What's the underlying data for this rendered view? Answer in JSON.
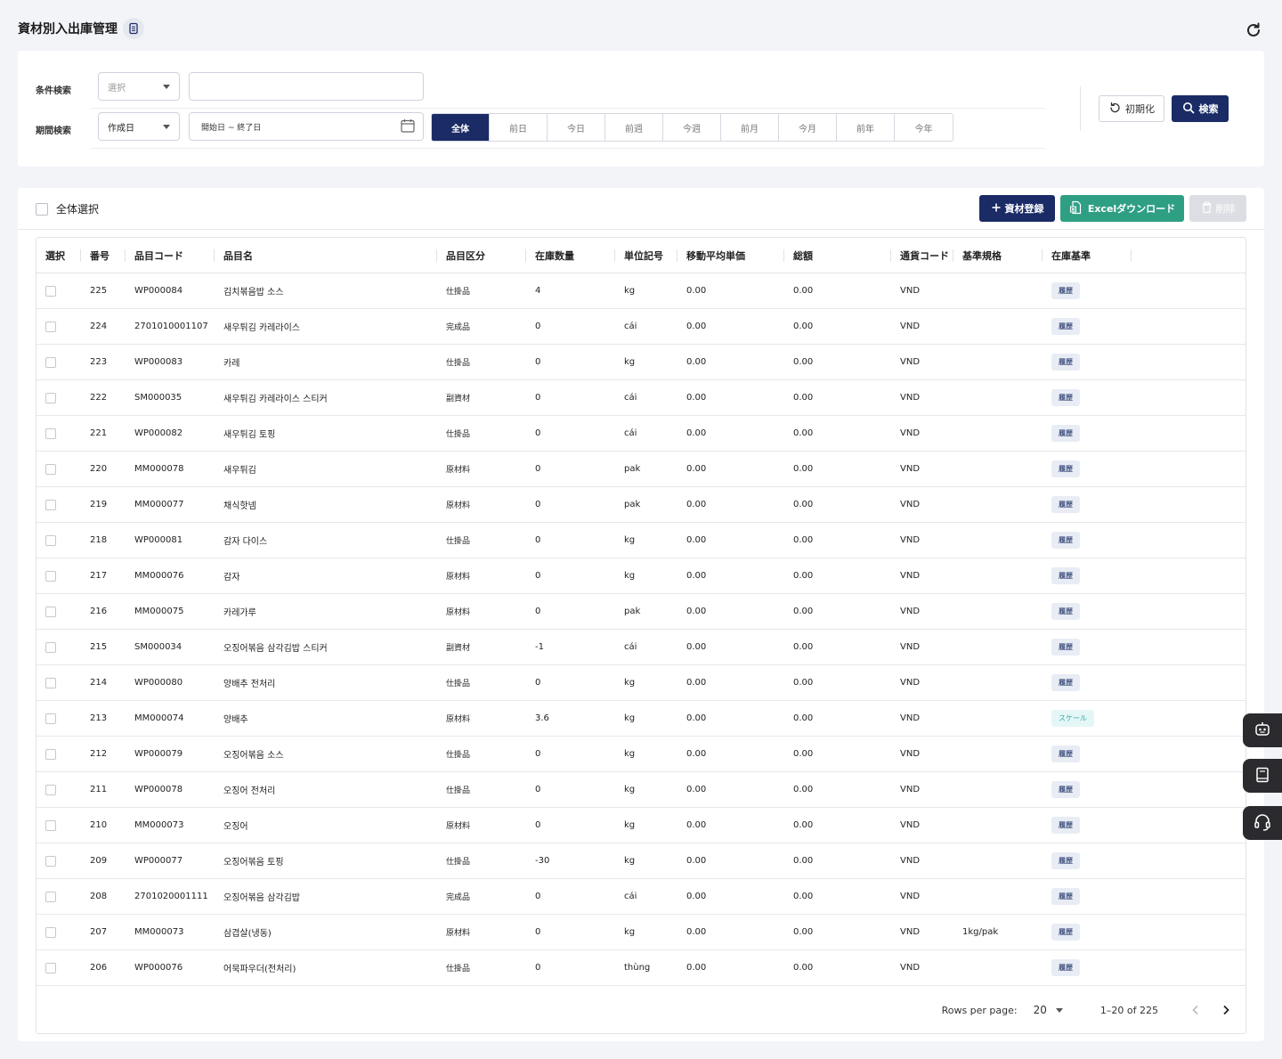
{
  "header": {
    "title": "資材別入出庫管理"
  },
  "filters": {
    "condition_label": "条件検索",
    "condition_select_placeholder": "選択",
    "condition_input_value": "",
    "period_label": "期間検索",
    "period_select_value": "作成日",
    "date_range_placeholder": "開始日 ~ 終了日",
    "period_buttons": [
      "全体",
      "前日",
      "今日",
      "前週",
      "今週",
      "前月",
      "今月",
      "前年",
      "今年"
    ],
    "reset_label": "初期化",
    "search_label": "検索"
  },
  "toolbar": {
    "select_all_label": "全体選択",
    "register_label": "資材登録",
    "excel_label": "Excelダウンロード",
    "delete_label": "削除"
  },
  "table": {
    "columns": [
      "選択",
      "番号",
      "品目コード",
      "品目名",
      "品目区分",
      "在庫数量",
      "単位記号",
      "移動平均単価",
      "総額",
      "通貨コード",
      "基準規格",
      "在庫基準"
    ],
    "rows": [
      {
        "no": "225",
        "code": "WP000084",
        "name": "김치볶음밥 소스",
        "category": "仕掛品",
        "qty": "4",
        "unit": "kg",
        "avg": "0.00",
        "total": "0.00",
        "currency": "VND",
        "spec": "",
        "basis": "履歴"
      },
      {
        "no": "224",
        "code": "2701010001107",
        "name": "새우튀김 카레라이스",
        "category": "完成品",
        "qty": "0",
        "unit": "cái",
        "avg": "0.00",
        "total": "0.00",
        "currency": "VND",
        "spec": "",
        "basis": "履歴"
      },
      {
        "no": "223",
        "code": "WP000083",
        "name": "카레",
        "category": "仕掛品",
        "qty": "0",
        "unit": "kg",
        "avg": "0.00",
        "total": "0.00",
        "currency": "VND",
        "spec": "",
        "basis": "履歴"
      },
      {
        "no": "222",
        "code": "SM000035",
        "name": "새우튀김 카레라이스 스티커",
        "category": "副資材",
        "qty": "0",
        "unit": "cái",
        "avg": "0.00",
        "total": "0.00",
        "currency": "VND",
        "spec": "",
        "basis": "履歴"
      },
      {
        "no": "221",
        "code": "WP000082",
        "name": "새우튀김 토핑",
        "category": "仕掛品",
        "qty": "0",
        "unit": "cái",
        "avg": "0.00",
        "total": "0.00",
        "currency": "VND",
        "spec": "",
        "basis": "履歴"
      },
      {
        "no": "220",
        "code": "MM000078",
        "name": "새우튀김",
        "category": "原材料",
        "qty": "0",
        "unit": "pak",
        "avg": "0.00",
        "total": "0.00",
        "currency": "VND",
        "spec": "",
        "basis": "履歴"
      },
      {
        "no": "219",
        "code": "MM000077",
        "name": "채식핫넴",
        "category": "原材料",
        "qty": "0",
        "unit": "pak",
        "avg": "0.00",
        "total": "0.00",
        "currency": "VND",
        "spec": "",
        "basis": "履歴"
      },
      {
        "no": "218",
        "code": "WP000081",
        "name": "감자 다이스",
        "category": "仕掛品",
        "qty": "0",
        "unit": "kg",
        "avg": "0.00",
        "total": "0.00",
        "currency": "VND",
        "spec": "",
        "basis": "履歴"
      },
      {
        "no": "217",
        "code": "MM000076",
        "name": "감자",
        "category": "原材料",
        "qty": "0",
        "unit": "kg",
        "avg": "0.00",
        "total": "0.00",
        "currency": "VND",
        "spec": "",
        "basis": "履歴"
      },
      {
        "no": "216",
        "code": "MM000075",
        "name": "카레가루",
        "category": "原材料",
        "qty": "0",
        "unit": "pak",
        "avg": "0.00",
        "total": "0.00",
        "currency": "VND",
        "spec": "",
        "basis": "履歴"
      },
      {
        "no": "215",
        "code": "SM000034",
        "name": "오징어볶음 삼각김밥 스티커",
        "category": "副資材",
        "qty": "-1",
        "unit": "cái",
        "avg": "0.00",
        "total": "0.00",
        "currency": "VND",
        "spec": "",
        "basis": "履歴"
      },
      {
        "no": "214",
        "code": "WP000080",
        "name": "양배추 전처리",
        "category": "仕掛品",
        "qty": "0",
        "unit": "kg",
        "avg": "0.00",
        "total": "0.00",
        "currency": "VND",
        "spec": "",
        "basis": "履歴"
      },
      {
        "no": "213",
        "code": "MM000074",
        "name": "양배추",
        "category": "原材料",
        "qty": "3.6",
        "unit": "kg",
        "avg": "0.00",
        "total": "0.00",
        "currency": "VND",
        "spec": "",
        "basis": "スケール"
      },
      {
        "no": "212",
        "code": "WP000079",
        "name": "오징어볶음 소스",
        "category": "仕掛品",
        "qty": "0",
        "unit": "kg",
        "avg": "0.00",
        "total": "0.00",
        "currency": "VND",
        "spec": "",
        "basis": "履歴"
      },
      {
        "no": "211",
        "code": "WP000078",
        "name": "오징어 전처리",
        "category": "仕掛品",
        "qty": "0",
        "unit": "kg",
        "avg": "0.00",
        "total": "0.00",
        "currency": "VND",
        "spec": "",
        "basis": "履歴"
      },
      {
        "no": "210",
        "code": "MM000073",
        "name": "오징어",
        "category": "原材料",
        "qty": "0",
        "unit": "kg",
        "avg": "0.00",
        "total": "0.00",
        "currency": "VND",
        "spec": "",
        "basis": "履歴"
      },
      {
        "no": "209",
        "code": "WP000077",
        "name": "오징어볶음 토핑",
        "category": "仕掛品",
        "qty": "-30",
        "unit": "kg",
        "avg": "0.00",
        "total": "0.00",
        "currency": "VND",
        "spec": "",
        "basis": "履歴"
      },
      {
        "no": "208",
        "code": "2701020001111",
        "name": "오징어볶음 삼각김밥",
        "category": "完成品",
        "qty": "0",
        "unit": "cái",
        "avg": "0.00",
        "total": "0.00",
        "currency": "VND",
        "spec": "",
        "basis": "履歴"
      },
      {
        "no": "207",
        "code": "MM000073",
        "name": "삼겹살(냉동)",
        "category": "原材料",
        "qty": "0",
        "unit": "kg",
        "avg": "0.00",
        "total": "0.00",
        "currency": "VND",
        "spec": "1kg/pak",
        "basis": "履歴"
      },
      {
        "no": "206",
        "code": "WP000076",
        "name": "어묵파우더(전처리)",
        "category": "仕掛品",
        "qty": "0",
        "unit": "thùng",
        "avg": "0.00",
        "total": "0.00",
        "currency": "VND",
        "spec": "",
        "basis": "履歴"
      }
    ]
  },
  "pagination": {
    "rows_per_page_label": "Rows per page:",
    "rows_per_page_value": "20",
    "range_text": "1–20 of 225"
  },
  "colors": {
    "primary": "#1a2b66",
    "excel": "#2f9f84",
    "disabled": "#dcdee3",
    "background": "#f3f4f8"
  },
  "icons": [
    "document-icon",
    "refresh-icon",
    "calendar-icon",
    "undo-icon",
    "search-icon",
    "plus-icon",
    "excel-icon",
    "trash-icon",
    "chevron-left-icon",
    "chevron-right-icon",
    "robot-icon",
    "book-icon",
    "headset-icon"
  ]
}
